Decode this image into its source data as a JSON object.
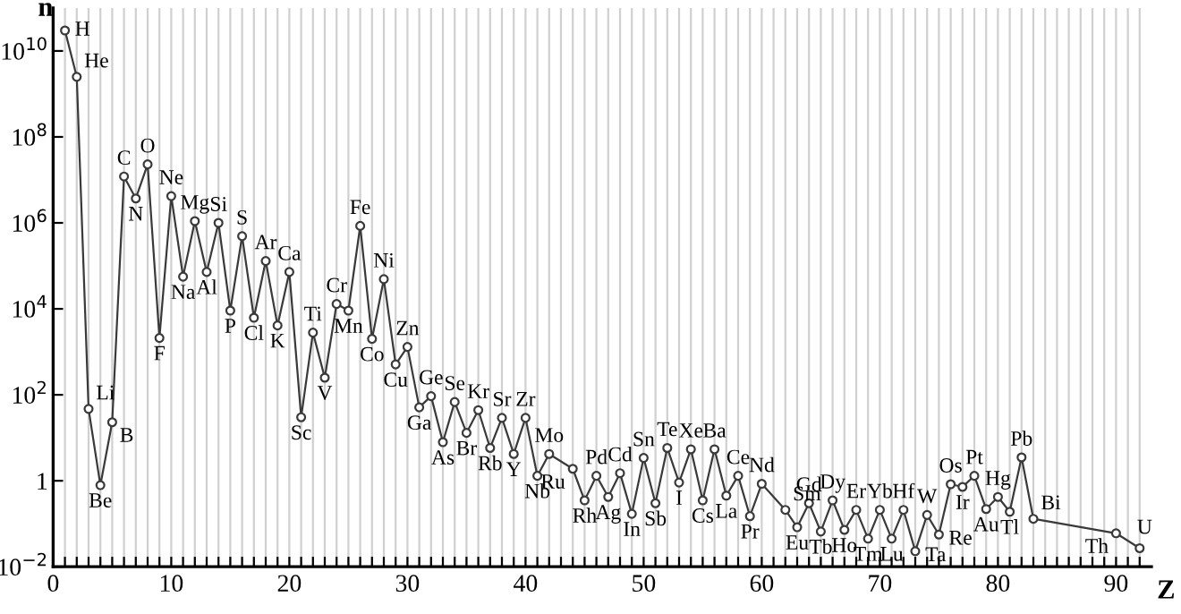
{
  "chart_data": {
    "type": "line",
    "xlabel": "Z",
    "ylabel": "n",
    "log": "y",
    "grid": "x",
    "marker": "circle",
    "line_style": "solid",
    "xlim": [
      0,
      93
    ],
    "ylim": [
      0.01,
      100000000000.0
    ],
    "xticks": [
      0,
      {
        "value": 1,
        "label": null
      },
      {
        "value": 2,
        "label": null
      },
      {
        "value": 3,
        "label": null
      },
      {
        "value": 4,
        "label": null
      },
      {
        "value": 5,
        "label": null
      },
      {
        "value": 6,
        "label": null
      },
      {
        "value": 7,
        "label": null
      },
      {
        "value": 8,
        "label": null
      },
      {
        "value": 9,
        "label": null
      },
      10,
      {
        "value": 11,
        "label": null
      },
      {
        "value": 12,
        "label": null
      },
      {
        "value": 13,
        "label": null
      },
      {
        "value": 14,
        "label": null
      },
      {
        "value": 15,
        "label": null
      },
      {
        "value": 16,
        "label": null
      },
      {
        "value": 17,
        "label": null
      },
      {
        "value": 18,
        "label": null
      },
      {
        "value": 19,
        "label": null
      },
      20,
      {
        "value": 21,
        "label": null
      },
      {
        "value": 22,
        "label": null
      },
      {
        "value": 23,
        "label": null
      },
      {
        "value": 24,
        "label": null
      },
      {
        "value": 25,
        "label": null
      },
      {
        "value": 26,
        "label": null
      },
      {
        "value": 27,
        "label": null
      },
      {
        "value": 28,
        "label": null
      },
      {
        "value": 29,
        "label": null
      },
      30,
      {
        "value": 31,
        "label": null
      },
      {
        "value": 32,
        "label": null
      },
      {
        "value": 33,
        "label": null
      },
      {
        "value": 34,
        "label": null
      },
      {
        "value": 35,
        "label": null
      },
      {
        "value": 36,
        "label": null
      },
      {
        "value": 37,
        "label": null
      },
      {
        "value": 38,
        "label": null
      },
      {
        "value": 39,
        "label": null
      },
      40,
      {
        "value": 41,
        "label": null
      },
      {
        "value": 42,
        "label": null
      },
      {
        "value": 43,
        "label": null
      },
      {
        "value": 44,
        "label": null
      },
      {
        "value": 45,
        "label": null
      },
      {
        "value": 46,
        "label": null
      },
      {
        "value": 47,
        "label": null
      },
      {
        "value": 48,
        "label": null
      },
      {
        "value": 49,
        "label": null
      },
      50,
      {
        "value": 51,
        "label": null
      },
      {
        "value": 52,
        "label": null
      },
      {
        "value": 53,
        "label": null
      },
      {
        "value": 54,
        "label": null
      },
      {
        "value": 55,
        "label": null
      },
      {
        "value": 56,
        "label": null
      },
      {
        "value": 57,
        "label": null
      },
      {
        "value": 58,
        "label": null
      },
      {
        "value": 59,
        "label": null
      },
      60,
      {
        "value": 61,
        "label": null
      },
      {
        "value": 62,
        "label": null
      },
      {
        "value": 63,
        "label": null
      },
      {
        "value": 64,
        "label": null
      },
      {
        "value": 65,
        "label": null
      },
      {
        "value": 66,
        "label": null
      },
      {
        "value": 67,
        "label": null
      },
      {
        "value": 68,
        "label": null
      },
      {
        "value": 69,
        "label": null
      },
      70,
      {
        "value": 71,
        "label": null
      },
      {
        "value": 72,
        "label": null
      },
      {
        "value": 73,
        "label": null
      },
      {
        "value": 74,
        "label": null
      },
      {
        "value": 75,
        "label": null
      },
      {
        "value": 76,
        "label": null
      },
      {
        "value": 77,
        "label": null
      },
      {
        "value": 78,
        "label": null
      },
      {
        "value": 79,
        "label": null
      },
      80,
      {
        "value": 81,
        "label": null
      },
      {
        "value": 82,
        "label": null
      },
      {
        "value": 83,
        "label": null
      },
      {
        "value": 84,
        "label": null
      },
      {
        "value": 85,
        "label": null
      },
      {
        "value": 86,
        "label": null
      },
      {
        "value": 87,
        "label": null
      },
      {
        "value": 88,
        "label": null
      },
      {
        "value": 89,
        "label": null
      },
      90,
      {
        "value": 91,
        "label": null
      },
      {
        "value": 92,
        "label": null
      }
    ],
    "yticks": [
      {
        "value": 0.01,
        "label": "10$^{−2}$"
      },
      1,
      {
        "value": 100,
        "label": "10$^{2}$"
      },
      {
        "value": 10000,
        "label": "10$^{4}$"
      },
      {
        "value": 1000000,
        "label": "10$^{6}$"
      },
      {
        "value": 100000000,
        "label": "10$^{8}$"
      },
      {
        "value": 10000000000,
        "label": "10$^{10}$"
      }
    ],
    "series": [
      {
        "color": "#3a3a3a",
        "x": [
          1,
          2,
          3,
          4,
          5,
          6,
          7,
          8,
          9,
          10,
          11,
          12,
          13,
          14,
          15,
          16,
          17,
          18,
          19,
          20,
          21,
          22,
          23,
          24,
          25,
          26,
          27,
          28,
          29,
          30,
          31,
          32,
          33,
          34,
          35,
          36,
          37,
          38,
          39,
          40,
          41,
          42,
          44,
          45,
          46,
          47,
          48,
          49,
          50,
          51,
          52,
          53,
          54,
          55,
          56,
          57,
          58,
          59,
          60,
          62,
          63,
          64,
          65,
          66,
          67,
          68,
          69,
          70,
          71,
          72,
          73,
          74,
          75,
          76,
          77,
          78,
          79,
          80,
          81,
          82,
          83,
          90,
          92
        ],
        "values": [
          30000000000.0,
          2500000000.0,
          47,
          0.79,
          23,
          12000000.0,
          3700000.0,
          23000000.0,
          2100,
          4200000.0,
          56000.0,
          1100000.0,
          72000.0,
          1000000.0,
          9100,
          490000.0,
          6200,
          130000.0,
          4100,
          72000.0,
          30,
          2800,
          250,
          13000.0,
          9100,
          850000.0,
          2000,
          49000.0,
          510,
          1300,
          51,
          93,
          7.9,
          68,
          13,
          44,
          5.8,
          29,
          4.2,
          29,
          1.3,
          4.2,
          1.9,
          0.35,
          1.3,
          0.42,
          1.5,
          0.17,
          3.4,
          0.3,
          5.8,
          0.91,
          5.4,
          0.35,
          5.4,
          0.45,
          1.3,
          0.15,
          0.85,
          0.21,
          0.083,
          0.3,
          0.066,
          0.35,
          0.072,
          0.21,
          0.045,
          0.21,
          0.045,
          0.21,
          0.023,
          0.16,
          0.056,
          0.83,
          0.72,
          1.3,
          0.22,
          0.42,
          0.19,
          3.5,
          0.13,
          0.06,
          0.027
        ]
      }
    ],
    "annotations": [
      {
        "text": "H",
        "x": 1,
        "y": 30000000000.0
      },
      {
        "text": "He",
        "x": 2,
        "y": 2500000000.0
      },
      {
        "text": "Li",
        "x": 3,
        "y": 47
      },
      {
        "text": "Be",
        "x": 4,
        "y": 0.79
      },
      {
        "text": "B",
        "x": 5,
        "y": 23
      },
      {
        "text": "C",
        "x": 6,
        "y": 12000000.0
      },
      {
        "text": "N",
        "x": 7,
        "y": 3700000.0
      },
      {
        "text": "O",
        "x": 8,
        "y": 23000000.0
      },
      {
        "text": "F",
        "x": 9,
        "y": 2100
      },
      {
        "text": "Ne",
        "x": 10,
        "y": 4200000.0
      },
      {
        "text": "Na",
        "x": 11,
        "y": 56000.0
      },
      {
        "text": "Mg",
        "x": 12,
        "y": 1100000.0
      },
      {
        "text": "Al",
        "x": 13,
        "y": 72000.0
      },
      {
        "text": "Si",
        "x": 14,
        "y": 1000000.0
      },
      {
        "text": "P",
        "x": 15,
        "y": 9100
      },
      {
        "text": "S",
        "x": 16,
        "y": 490000.0
      },
      {
        "text": "Cl",
        "x": 17,
        "y": 6200
      },
      {
        "text": "Ar",
        "x": 18,
        "y": 130000.0
      },
      {
        "text": "K",
        "x": 19,
        "y": 4100
      },
      {
        "text": "Ca",
        "x": 20,
        "y": 72000.0
      },
      {
        "text": "Sc",
        "x": 21,
        "y": 30
      },
      {
        "text": "Ti",
        "x": 22,
        "y": 2800
      },
      {
        "text": "V",
        "x": 23,
        "y": 250
      },
      {
        "text": "Cr",
        "x": 24,
        "y": 13000.0
      },
      {
        "text": "Mn",
        "x": 25,
        "y": 9100
      },
      {
        "text": "Fe",
        "x": 26,
        "y": 850000.0
      },
      {
        "text": "Co",
        "x": 27,
        "y": 2000
      },
      {
        "text": "Ni",
        "x": 28,
        "y": 49000.0
      },
      {
        "text": "Cu",
        "x": 29,
        "y": 510
      },
      {
        "text": "Zn",
        "x": 30,
        "y": 1300
      },
      {
        "text": "Ga",
        "x": 31,
        "y": 51
      },
      {
        "text": "Ge",
        "x": 32,
        "y": 93
      },
      {
        "text": "As",
        "x": 33,
        "y": 7.9
      },
      {
        "text": "Se",
        "x": 34,
        "y": 68
      },
      {
        "text": "Br",
        "x": 35,
        "y": 13
      },
      {
        "text": "Kr",
        "x": 36,
        "y": 44
      },
      {
        "text": "Rb",
        "x": 37,
        "y": 5.8
      },
      {
        "text": "Sr",
        "x": 38,
        "y": 29
      },
      {
        "text": "Y",
        "x": 39,
        "y": 4.2
      },
      {
        "text": "Zr",
        "x": 40,
        "y": 29
      },
      {
        "text": "Nb",
        "x": 41,
        "y": 1.3
      },
      {
        "text": "Mo",
        "x": 42,
        "y": 4.2
      },
      {
        "text": "Ru",
        "x": 44,
        "y": 1.9
      },
      {
        "text": "Rh",
        "x": 45,
        "y": 0.35
      },
      {
        "text": "Pd",
        "x": 46,
        "y": 1.3
      },
      {
        "text": "Ag",
        "x": 47,
        "y": 0.42
      },
      {
        "text": "Cd",
        "x": 48,
        "y": 1.5
      },
      {
        "text": "In",
        "x": 49,
        "y": 0.17
      },
      {
        "text": "Sn",
        "x": 50,
        "y": 3.4
      },
      {
        "text": "Sb",
        "x": 51,
        "y": 0.3
      },
      {
        "text": "Te",
        "x": 52,
        "y": 5.8
      },
      {
        "text": "I",
        "x": 53,
        "y": 0.91
      },
      {
        "text": "Xe",
        "x": 54,
        "y": 5.4
      },
      {
        "text": "Cs",
        "x": 55,
        "y": 0.35
      },
      {
        "text": "Ba",
        "x": 56,
        "y": 5.4
      },
      {
        "text": "La",
        "x": 57,
        "y": 0.45
      },
      {
        "text": "Ce",
        "x": 58,
        "y": 1.3
      },
      {
        "text": "Pr",
        "x": 59,
        "y": 0.15
      },
      {
        "text": "Nd",
        "x": 60,
        "y": 0.85
      },
      {
        "text": "Sm",
        "x": 62,
        "y": 0.21
      },
      {
        "text": "Eu",
        "x": 63,
        "y": 0.083
      },
      {
        "text": "Gd",
        "x": 64,
        "y": 0.3
      },
      {
        "text": "Tb",
        "x": 65,
        "y": 0.066
      },
      {
        "text": "Dy",
        "x": 66,
        "y": 0.35
      },
      {
        "text": "Ho",
        "x": 67,
        "y": 0.072
      },
      {
        "text": "Er",
        "x": 68,
        "y": 0.21
      },
      {
        "text": "Tm",
        "x": 69,
        "y": 0.045
      },
      {
        "text": "Yb",
        "x": 70,
        "y": 0.21
      },
      {
        "text": "Lu",
        "x": 71,
        "y": 0.045
      },
      {
        "text": "Hf",
        "x": 72,
        "y": 0.21
      },
      {
        "text": "Ta",
        "x": 73,
        "y": 0.023
      },
      {
        "text": "W",
        "x": 74,
        "y": 0.16
      },
      {
        "text": "Re",
        "x": 75,
        "y": 0.056
      },
      {
        "text": "Os",
        "x": 76,
        "y": 0.83
      },
      {
        "text": "Ir",
        "x": 77,
        "y": 0.72
      },
      {
        "text": "Pt",
        "x": 78,
        "y": 1.3
      },
      {
        "text": "Au",
        "x": 79,
        "y": 0.22
      },
      {
        "text": "Hg",
        "x": 80,
        "y": 0.42
      },
      {
        "text": "Tl",
        "x": 81,
        "y": 0.19
      },
      {
        "text": "Pb",
        "x": 82,
        "y": 3.5
      },
      {
        "text": "Bi",
        "x": 83,
        "y": 0.13
      },
      {
        "text": "Th",
        "x": 90,
        "y": 0.06
      },
      {
        "text": "U",
        "x": 92,
        "y": 0.027
      }
    ]
  }
}
